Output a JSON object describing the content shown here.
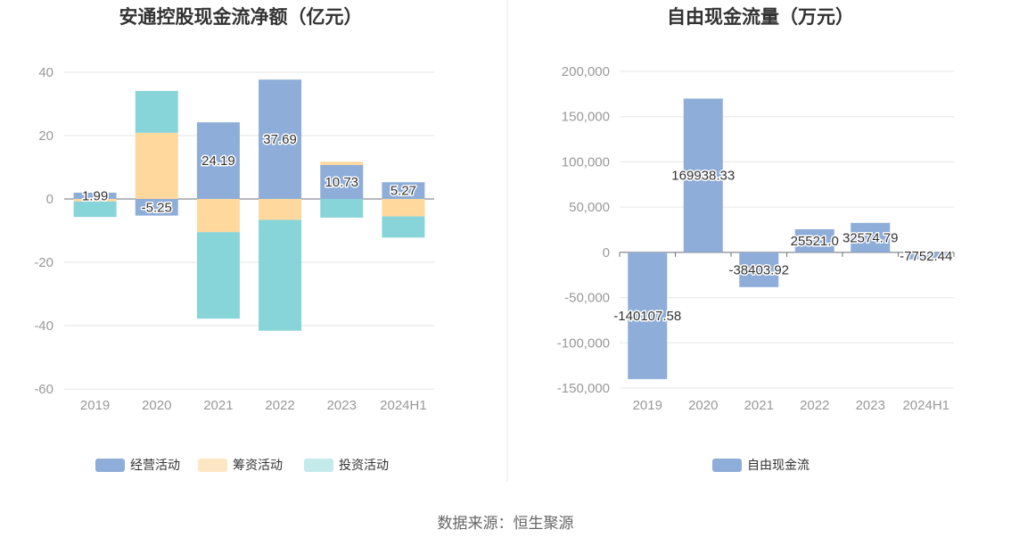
{
  "source": "数据来源：恒生聚源",
  "chart_data": [
    {
      "type": "bar",
      "stacked": true,
      "title": "安通控股现金流净额（亿元）",
      "categories": [
        "2019",
        "2020",
        "2021",
        "2022",
        "2023",
        "2024H1"
      ],
      "ylim": [
        -60,
        40
      ],
      "yticks": [
        40,
        20,
        0,
        -20,
        -40,
        -60
      ],
      "grid": true,
      "legend": "bottom",
      "series": [
        {
          "name": "经营活动",
          "color": "#8eadd9",
          "values": [
            1.99,
            -5.25,
            24.19,
            37.69,
            10.73,
            5.27
          ]
        },
        {
          "name": "筹资活动",
          "color": "#fed89c",
          "values": [
            -0.8,
            20.9,
            -10.5,
            -6.6,
            1.0,
            -5.5
          ]
        },
        {
          "name": "投资活动",
          "color": "#88d5d9",
          "values": [
            -4.9,
            13.2,
            -27.3,
            -35.0,
            -5.9,
            -6.7
          ]
        }
      ],
      "legend_colors": [
        "#8eadd9",
        "#fde6c4",
        "#c4eaec"
      ],
      "data_labels": [
        "1.99",
        "-5.25",
        "24.19",
        "37.69",
        "10.73",
        "5.27"
      ]
    },
    {
      "type": "bar",
      "title": "自由现金流量（万元）",
      "categories": [
        "2019",
        "2020",
        "2021",
        "2022",
        "2023",
        "2024H1"
      ],
      "ylim": [
        -150000,
        200000
      ],
      "yticks": [
        200000,
        150000,
        100000,
        50000,
        0,
        -50000,
        -100000,
        -150000
      ],
      "ytick_labels": [
        "200,000",
        "150,000",
        "100,000",
        "50,000",
        "0",
        "-50,000",
        "-100,000",
        "-150,000"
      ],
      "grid": true,
      "legend": "bottom",
      "series": [
        {
          "name": "自由现金流",
          "color": "#8eadd9",
          "values": [
            -140107.58,
            169938.33,
            -38403.92,
            25521.0,
            32574.79,
            -7752.44
          ]
        }
      ],
      "data_labels": [
        "-140107.58",
        "169938.33",
        "-38403.92",
        "25521.0",
        "32574.79",
        "-7752.44"
      ]
    }
  ]
}
